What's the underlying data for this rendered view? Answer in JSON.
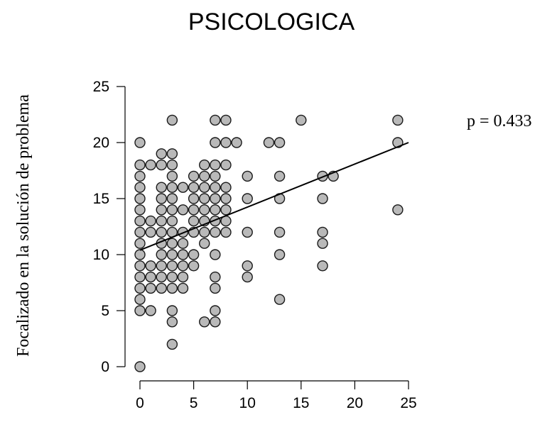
{
  "chart_data": {
    "type": "scatter",
    "title": "PSICOLOGICA",
    "xlabel": "",
    "ylabel": "Focalizado en la solución de problema",
    "annotation": "p = 0.433",
    "xlim": [
      0,
      25
    ],
    "ylim": [
      0,
      25
    ],
    "x_ticks": [
      0,
      5,
      10,
      15,
      20,
      25
    ],
    "y_ticks": [
      0,
      5,
      10,
      15,
      20,
      25
    ],
    "grid": false,
    "points": [
      {
        "x": 0,
        "y": 0
      },
      {
        "x": 0,
        "y": 5
      },
      {
        "x": 0,
        "y": 6
      },
      {
        "x": 0,
        "y": 7
      },
      {
        "x": 0,
        "y": 8
      },
      {
        "x": 0,
        "y": 9
      },
      {
        "x": 0,
        "y": 10
      },
      {
        "x": 0,
        "y": 11
      },
      {
        "x": 0,
        "y": 12
      },
      {
        "x": 0,
        "y": 13
      },
      {
        "x": 0,
        "y": 14
      },
      {
        "x": 0,
        "y": 15
      },
      {
        "x": 0,
        "y": 16
      },
      {
        "x": 0,
        "y": 17
      },
      {
        "x": 0,
        "y": 18
      },
      {
        "x": 0,
        "y": 20
      },
      {
        "x": 1,
        "y": 5
      },
      {
        "x": 1,
        "y": 7
      },
      {
        "x": 1,
        "y": 8
      },
      {
        "x": 1,
        "y": 9
      },
      {
        "x": 1,
        "y": 12
      },
      {
        "x": 1,
        "y": 13
      },
      {
        "x": 1,
        "y": 18
      },
      {
        "x": 2,
        "y": 7
      },
      {
        "x": 2,
        "y": 8
      },
      {
        "x": 2,
        "y": 9
      },
      {
        "x": 2,
        "y": 10
      },
      {
        "x": 2,
        "y": 11
      },
      {
        "x": 2,
        "y": 12
      },
      {
        "x": 2,
        "y": 13
      },
      {
        "x": 2,
        "y": 14
      },
      {
        "x": 2,
        "y": 15
      },
      {
        "x": 2,
        "y": 16
      },
      {
        "x": 2,
        "y": 18
      },
      {
        "x": 2,
        "y": 19
      },
      {
        "x": 3,
        "y": 2
      },
      {
        "x": 3,
        "y": 4
      },
      {
        "x": 3,
        "y": 5
      },
      {
        "x": 3,
        "y": 7
      },
      {
        "x": 3,
        "y": 8
      },
      {
        "x": 3,
        "y": 9
      },
      {
        "x": 3,
        "y": 10
      },
      {
        "x": 3,
        "y": 11
      },
      {
        "x": 3,
        "y": 12
      },
      {
        "x": 3,
        "y": 13
      },
      {
        "x": 3,
        "y": 14
      },
      {
        "x": 3,
        "y": 15
      },
      {
        "x": 3,
        "y": 16
      },
      {
        "x": 3,
        "y": 17
      },
      {
        "x": 3,
        "y": 18
      },
      {
        "x": 3,
        "y": 19
      },
      {
        "x": 3,
        "y": 22
      },
      {
        "x": 4,
        "y": 7
      },
      {
        "x": 4,
        "y": 8
      },
      {
        "x": 4,
        "y": 9
      },
      {
        "x": 4,
        "y": 10
      },
      {
        "x": 4,
        "y": 11
      },
      {
        "x": 4,
        "y": 12
      },
      {
        "x": 4,
        "y": 14
      },
      {
        "x": 4,
        "y": 16
      },
      {
        "x": 5,
        "y": 9
      },
      {
        "x": 5,
        "y": 10
      },
      {
        "x": 5,
        "y": 12
      },
      {
        "x": 5,
        "y": 13
      },
      {
        "x": 5,
        "y": 14
      },
      {
        "x": 5,
        "y": 15
      },
      {
        "x": 5,
        "y": 16
      },
      {
        "x": 5,
        "y": 17
      },
      {
        "x": 6,
        "y": 4
      },
      {
        "x": 6,
        "y": 11
      },
      {
        "x": 6,
        "y": 12
      },
      {
        "x": 6,
        "y": 13
      },
      {
        "x": 6,
        "y": 14
      },
      {
        "x": 6,
        "y": 15
      },
      {
        "x": 6,
        "y": 16
      },
      {
        "x": 6,
        "y": 17
      },
      {
        "x": 6,
        "y": 18
      },
      {
        "x": 7,
        "y": 4
      },
      {
        "x": 7,
        "y": 5
      },
      {
        "x": 7,
        "y": 7
      },
      {
        "x": 7,
        "y": 8
      },
      {
        "x": 7,
        "y": 10
      },
      {
        "x": 7,
        "y": 12
      },
      {
        "x": 7,
        "y": 13
      },
      {
        "x": 7,
        "y": 14
      },
      {
        "x": 7,
        "y": 15
      },
      {
        "x": 7,
        "y": 16
      },
      {
        "x": 7,
        "y": 17
      },
      {
        "x": 7,
        "y": 18
      },
      {
        "x": 7,
        "y": 20
      },
      {
        "x": 7,
        "y": 22
      },
      {
        "x": 8,
        "y": 12
      },
      {
        "x": 8,
        "y": 13
      },
      {
        "x": 8,
        "y": 14
      },
      {
        "x": 8,
        "y": 15
      },
      {
        "x": 8,
        "y": 16
      },
      {
        "x": 8,
        "y": 18
      },
      {
        "x": 8,
        "y": 20
      },
      {
        "x": 8,
        "y": 22
      },
      {
        "x": 9,
        "y": 20
      },
      {
        "x": 10,
        "y": 8
      },
      {
        "x": 10,
        "y": 9
      },
      {
        "x": 10,
        "y": 12
      },
      {
        "x": 10,
        "y": 15
      },
      {
        "x": 10,
        "y": 17
      },
      {
        "x": 12,
        "y": 20
      },
      {
        "x": 13,
        "y": 6
      },
      {
        "x": 13,
        "y": 10
      },
      {
        "x": 13,
        "y": 12
      },
      {
        "x": 13,
        "y": 15
      },
      {
        "x": 13,
        "y": 17
      },
      {
        "x": 13,
        "y": 20
      },
      {
        "x": 15,
        "y": 22
      },
      {
        "x": 17,
        "y": 9
      },
      {
        "x": 17,
        "y": 11
      },
      {
        "x": 17,
        "y": 12
      },
      {
        "x": 17,
        "y": 15
      },
      {
        "x": 17,
        "y": 17
      },
      {
        "x": 18,
        "y": 17
      },
      {
        "x": 24,
        "y": 14
      },
      {
        "x": 24,
        "y": 20
      },
      {
        "x": 24,
        "y": 22
      }
    ],
    "fit_line": {
      "x": [
        0,
        25
      ],
      "y": [
        10.4,
        20
      ]
    }
  }
}
